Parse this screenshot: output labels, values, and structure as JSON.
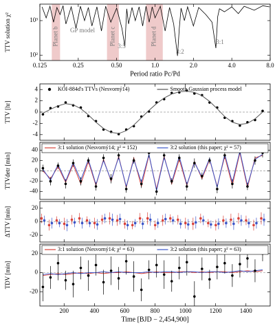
{
  "chart_data": [
    {
      "type": "line",
      "xlabel": "Period ratio Pc/Pd",
      "ylabel": "TTV solution χ²",
      "xlog": true,
      "ylog": true,
      "xlim": [
        0.125,
        8
      ],
      "ylim": [
        70,
        3000
      ],
      "xticks": [
        0.125,
        0.25,
        {
          "value": 0.5,
          "label": "0.50"
        },
        {
          "value": 1,
          "label": "1.0"
        },
        {
          "value": 2,
          "label": "2.0"
        },
        {
          "value": 4,
          "label": "4.0"
        },
        {
          "value": 8,
          "label": "8.0"
        }
      ],
      "yticks": [
        {
          "value": 100,
          "label": "10²"
        },
        {
          "value": 1000,
          "label": "10³"
        }
      ],
      "regions": [
        {
          "label": "Planet b",
          "range": [
            0.155,
            0.18
          ]
        },
        {
          "label": "Planet c",
          "range": [
            0.42,
            0.52
          ]
        },
        {
          "label": "Planet d",
          "range": [
            0.85,
            1.15
          ]
        }
      ],
      "region_color": "#e9b8b8",
      "annotations": [
        "GP model",
        "3:5",
        "3:2",
        "3:1"
      ],
      "x": [
        0.13,
        0.14,
        0.15,
        0.16,
        0.17,
        0.18,
        0.19,
        0.2,
        0.22,
        0.24,
        0.26,
        0.28,
        0.3,
        0.32,
        0.35,
        0.38,
        0.41,
        0.45,
        0.5,
        0.55,
        0.58,
        0.6,
        0.62,
        0.66,
        0.7,
        0.75,
        0.8,
        0.85,
        0.9,
        0.95,
        1.0,
        1.1,
        1.2,
        1.3,
        1.4,
        1.5,
        1.55,
        1.6,
        1.7,
        1.8,
        2.0,
        2.2,
        2.5,
        2.8,
        3.0,
        3.1,
        3.2,
        3.5,
        4.0,
        4.5,
        5,
        6,
        7,
        7.9
      ],
      "series": [
        {
          "style": "line",
          "color": "#000000",
          "values": [
            2500,
            1200,
            2600,
            900,
            2400,
            1500,
            2700,
            800,
            2500,
            600,
            2600,
            1000,
            2400,
            700,
            2500,
            500,
            2600,
            900,
            2300,
            600,
            180,
            2200,
            800,
            2400,
            1000,
            2500,
            700,
            2600,
            900,
            2500,
            1200,
            2600,
            500,
            2400,
            800,
            95,
            600,
            2300,
            1000,
            2500,
            700,
            2400,
            1500,
            900,
            160,
            1300,
            2200,
            1800,
            2500,
            1600,
            2600,
            2000,
            2700,
            2500
          ]
        }
      ]
    },
    {
      "type": "line",
      "ylabel": "TTV [hr]",
      "xlim": [
        40,
        1560
      ],
      "ylim": [
        -5,
        5
      ],
      "yticks": [
        -4,
        -2,
        0,
        2,
        4
      ],
      "x": [
        60,
        110,
        160,
        210,
        260,
        310,
        360,
        410,
        460,
        510,
        560,
        610,
        660,
        710,
        760,
        810,
        860,
        910,
        960,
        1010,
        1060,
        1110,
        1160,
        1210,
        1260,
        1310,
        1360,
        1410,
        1460,
        1510
      ],
      "series": [
        {
          "name": "KOI-884d's TTVs (Nesvorný14)",
          "style": "points",
          "color": "#000000",
          "values": [
            -0.4,
            0.7,
            1.0,
            1.7,
            1.2,
            0.8,
            -0.7,
            -1.6,
            -3.1,
            -3.5,
            -3.9,
            -3.1,
            -2.5,
            -0.8,
            0.1,
            1.7,
            2.3,
            3.4,
            3.5,
            3.8,
            3.3,
            3.0,
            1.7,
            0.8,
            -1.0,
            -1.6,
            -2.4,
            -1.8,
            -1.4,
            0.2
          ]
        },
        {
          "name": "Smooth Gaussian process model",
          "style": "line",
          "color": "#555555",
          "values": [
            -0.2,
            0.5,
            1.1,
            1.5,
            1.3,
            0.6,
            -0.5,
            -1.8,
            -2.9,
            -3.6,
            -3.8,
            -3.3,
            -2.3,
            -1.0,
            0.3,
            1.5,
            2.5,
            3.2,
            3.6,
            3.7,
            3.5,
            2.9,
            1.9,
            0.6,
            -0.8,
            -1.8,
            -2.2,
            -2.0,
            -1.2,
            0.0
          ]
        }
      ]
    },
    {
      "type": "line",
      "ylabel": "TTVdetr [min]",
      "xlim": [
        40,
        1560
      ],
      "ylim": [
        -55,
        55
      ],
      "yticks": [
        -40,
        -20,
        0,
        20,
        40
      ],
      "legend_box": true,
      "x": [
        60,
        110,
        160,
        210,
        260,
        310,
        360,
        410,
        460,
        510,
        560,
        610,
        660,
        710,
        760,
        810,
        860,
        910,
        960,
        1010,
        1060,
        1110,
        1160,
        1210,
        1260,
        1310,
        1360,
        1410,
        1460,
        1510
      ],
      "series": [
        {
          "name": "3:1 solution (Nesvorný14; χ² = 152)",
          "style": "line",
          "color": "#d9423a",
          "values": [
            0,
            -15,
            8,
            -22,
            12,
            -25,
            18,
            -28,
            22,
            -20,
            28,
            -32,
            25,
            -30,
            30,
            -35,
            28,
            -25,
            22,
            -28,
            18,
            -15,
            22,
            -30,
            28,
            -28,
            35,
            -32,
            25,
            30
          ]
        },
        {
          "name": "3:2 solution (this paper; χ² = 57)",
          "style": "line",
          "color": "#3b55c9",
          "values": [
            3,
            -18,
            12,
            -20,
            16,
            -18,
            22,
            -26,
            20,
            -18,
            26,
            -30,
            22,
            -22,
            32,
            -38,
            26,
            -22,
            28,
            -26,
            16,
            -12,
            24,
            -32,
            32,
            -22,
            38,
            -28,
            22,
            32
          ]
        },
        {
          "style": "points",
          "color": "#000000",
          "values": [
            5,
            -20,
            10,
            -25,
            15,
            -20,
            20,
            -30,
            25,
            -15,
            30,
            -35,
            20,
            -25,
            35,
            -40,
            30,
            -20,
            25,
            -30,
            15,
            -10,
            20,
            -35,
            30,
            -25,
            40,
            -30,
            20,
            35
          ],
          "errors": [
            7,
            8,
            6,
            9,
            7,
            8,
            6,
            8,
            7,
            9,
            8,
            7,
            6,
            8,
            9,
            7,
            8,
            6,
            7,
            8,
            9,
            7,
            6,
            8,
            7,
            9,
            8,
            7,
            8,
            9
          ]
        }
      ]
    },
    {
      "type": "line",
      "ylabel": "ΔTTV [min]",
      "xlim": [
        40,
        1560
      ],
      "ylim": [
        -30,
        30
      ],
      "yticks": [
        -20,
        0,
        20
      ],
      "x": [
        60,
        110,
        160,
        210,
        260,
        310,
        360,
        410,
        460,
        510,
        560,
        610,
        660,
        710,
        760,
        810,
        860,
        910,
        960,
        1010,
        1060,
        1110,
        1160,
        1210,
        1260,
        1310,
        1360,
        1410,
        1460,
        1510
      ],
      "series": [
        {
          "style": "points",
          "color": "#d9423a",
          "values": [
            5,
            -5,
            2,
            -3,
            3,
            5,
            2,
            -2,
            3,
            5,
            2,
            -3,
            -5,
            5,
            5,
            -5,
            2,
            5,
            3,
            -2,
            -3,
            5,
            -2,
            -5,
            2,
            3,
            5,
            2,
            -5,
            5
          ],
          "errors": [
            7,
            8,
            6,
            9,
            7,
            8,
            6,
            8,
            7,
            9,
            8,
            7,
            6,
            8,
            9,
            7,
            8,
            6,
            7,
            8,
            9,
            7,
            6,
            8,
            7,
            9,
            8,
            7,
            8,
            9
          ]
        },
        {
          "style": "points",
          "color": "#3b55c9",
          "values": [
            2,
            -2,
            -2,
            -5,
            -1,
            -2,
            -2,
            -4,
            5,
            3,
            4,
            -5,
            -2,
            -3,
            3,
            -2,
            4,
            2,
            -3,
            -4,
            -1,
            2,
            -4,
            -3,
            -2,
            -3,
            2,
            -2,
            -2,
            3
          ],
          "errors": [
            7,
            8,
            6,
            9,
            7,
            8,
            6,
            8,
            7,
            9,
            8,
            7,
            6,
            8,
            9,
            7,
            8,
            6,
            7,
            8,
            9,
            7,
            6,
            8,
            7,
            9,
            8,
            7,
            8,
            9
          ]
        }
      ]
    },
    {
      "type": "line",
      "ylabel": "TDV [min]",
      "xlabel": "Time [BJD − 2,454,900]",
      "xlim": [
        40,
        1560
      ],
      "ylim": [
        -35,
        30
      ],
      "xticks": [
        200,
        400,
        600,
        800,
        1000,
        1200,
        1400
      ],
      "yticks": [
        -20,
        0,
        20
      ],
      "legend_box": true,
      "x": [
        60,
        110,
        160,
        210,
        260,
        310,
        360,
        410,
        460,
        510,
        560,
        610,
        660,
        710,
        760,
        810,
        860,
        910,
        960,
        1010,
        1060,
        1110,
        1160,
        1210,
        1260,
        1310,
        1360,
        1410,
        1460,
        1510
      ],
      "series": [
        {
          "name": "3:1 solution (Nesvorný14; χ² = 63)",
          "style": "line",
          "color": "#d9423a",
          "values": [
            -3,
            -2,
            -1,
            -2,
            -1,
            0,
            -1,
            0,
            -1,
            0,
            0,
            1,
            0,
            -1,
            0,
            1,
            0,
            0,
            1,
            1,
            0,
            1,
            0,
            1,
            1,
            0,
            1,
            2,
            1,
            2
          ]
        },
        {
          "name": "3:2 solution (this paper; χ² = 63)",
          "style": "line",
          "color": "#3b55c9",
          "values": [
            -2,
            -1,
            -2,
            -1,
            0,
            -1,
            0,
            0,
            1,
            0,
            1,
            0,
            0,
            0,
            1,
            0,
            1,
            1,
            0,
            1,
            1,
            0,
            1,
            1,
            0,
            1,
            2,
            1,
            2,
            3
          ]
        },
        {
          "style": "points",
          "color": "#000000",
          "values": [
            -15,
            -5,
            10,
            -8,
            -12,
            5,
            -3,
            8,
            -10,
            2,
            -6,
            12,
            -4,
            -18,
            3,
            8,
            -2,
            -9,
            5,
            11,
            -25,
            4,
            -7,
            6,
            10,
            -3,
            9,
            15,
            2,
            20
          ],
          "errors": [
            15,
            12,
            18,
            10,
            14,
            12,
            16,
            11,
            13,
            15,
            12,
            14,
            16,
            12,
            10,
            13,
            15,
            11,
            12,
            14,
            16,
            12,
            10,
            13,
            11,
            12,
            14,
            10,
            12,
            8
          ]
        }
      ]
    }
  ]
}
